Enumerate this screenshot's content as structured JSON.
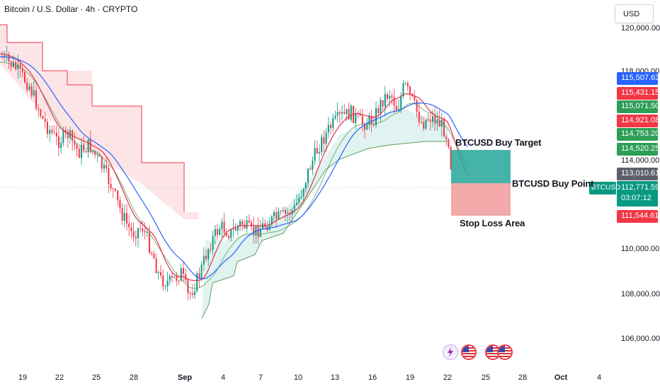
{
  "header": {
    "title": "Bitcoin / U.S. Dollar · 4h · CRYPTO",
    "currency_button": "USD",
    "symbol_tag": "BTCUSD"
  },
  "y_axis_ticks": [
    "120,000.00",
    "118,000.00",
    "114,000.00",
    "110,000.00",
    "108,000.00",
    "106,000.00"
  ],
  "x_axis_ticks": [
    "19",
    "22",
    "25",
    "28",
    "Sep",
    "4",
    "7",
    "10",
    "13",
    "16",
    "19",
    "22",
    "25",
    "28",
    "Oct",
    "4"
  ],
  "price_tags": {
    "blue": "115,507.63",
    "red_top": "115,431.15",
    "green_1": "115,071.50",
    "red_2": "114,921.08",
    "green_2": "114,753.20",
    "green_3": "114,520.25",
    "gray": "113,010.61",
    "current": "112,771.59",
    "countdown": "03:07:12",
    "red_bottom": "111,544.61"
  },
  "annotations": {
    "target": "BTCUSD Buy Target",
    "buy_point": "BTCUSD Buy Point",
    "stop_loss": "Stop Loss Area"
  },
  "colors": {
    "up": "#089981",
    "down": "#f23645",
    "ma_blue": "#2962ff",
    "ma_red": "#e0314b",
    "ma_green": "#5aa05f",
    "target_zone": "#26a69a",
    "stop_zone": "#ef9a9a"
  },
  "events": [
    "flash-icon",
    "us-flag-icon",
    "us-flag-icon",
    "us-flag-icon"
  ]
}
